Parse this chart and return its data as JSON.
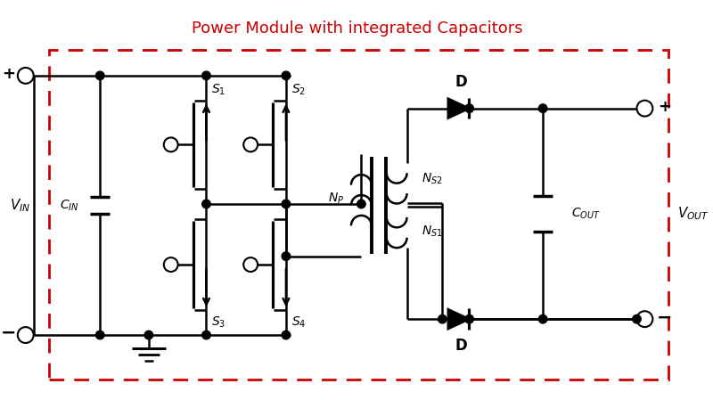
{
  "title": "Power Module with integrated Capacitors",
  "title_color": "#cc0000",
  "title_fontsize": 13,
  "box_color": "#cc0000",
  "line_color": "#000000",
  "bg_color": "#ffffff",
  "lw": 1.8,
  "figsize": [
    8.0,
    4.49
  ],
  "dpi": 100
}
